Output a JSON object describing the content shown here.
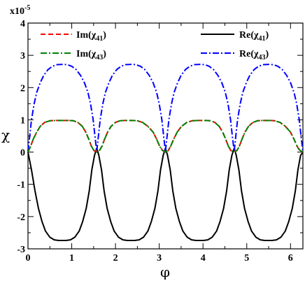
{
  "chart_data": {
    "type": "line",
    "multiplier": {
      "base": "x10",
      "exponent": "-5"
    },
    "xlabel": "φ",
    "ylabel": "χ",
    "xlim": [
      0,
      6.283
    ],
    "ylim": [
      -3,
      4
    ],
    "x_ticks": [
      "0",
      "1",
      "2",
      "3",
      "4",
      "5",
      "6"
    ],
    "y_ticks": [
      "-3",
      "-2",
      "-1",
      "0",
      "1",
      "2",
      "3",
      "4"
    ],
    "grid": false,
    "legend_left": [
      {
        "series": "Im_chi41",
        "label_main": "Im(χ",
        "label_sub": "41",
        "label_end": ")"
      },
      {
        "series": "Im_chi43",
        "label_main": "Im(χ",
        "label_sub": "43",
        "label_end": ")"
      }
    ],
    "legend_right": [
      {
        "series": "Re_chi41",
        "label_main": "Re(χ",
        "label_sub": "41",
        "label_end": ")"
      },
      {
        "series": "Re_chi43",
        "label_main": "Re(χ",
        "label_sub": "43",
        "label_end": ")"
      }
    ],
    "series": [
      {
        "id": "Re_chi41",
        "color": "#000000",
        "dash": "",
        "x": [
          0,
          0.08,
          0.16,
          0.24,
          0.32,
          0.4,
          0.5,
          0.6,
          0.7,
          0.785,
          0.87,
          0.97,
          1.07,
          1.17,
          1.25,
          1.33,
          1.4,
          1.46,
          1.52,
          1.5708,
          1.62,
          1.68,
          1.74,
          1.81,
          1.89,
          1.97,
          2.07,
          2.17,
          2.27,
          2.356,
          2.44,
          2.54,
          2.64,
          2.74,
          2.82,
          2.9,
          2.97,
          3.03,
          3.09,
          3.1416,
          3.19,
          3.25,
          3.31,
          3.38,
          3.46,
          3.54,
          3.64,
          3.74,
          3.84,
          3.927,
          4.01,
          4.11,
          4.21,
          4.31,
          4.39,
          4.47,
          4.54,
          4.6,
          4.66,
          4.7124,
          4.76,
          4.82,
          4.88,
          4.95,
          5.03,
          5.11,
          5.21,
          5.31,
          5.41,
          5.498,
          5.58,
          5.68,
          5.78,
          5.88,
          5.96,
          6.04,
          6.11,
          6.17,
          6.23,
          6.283
        ],
        "values": [
          0,
          -0.55,
          -1.2,
          -1.75,
          -2.15,
          -2.45,
          -2.64,
          -2.72,
          -2.74,
          -2.74,
          -2.74,
          -2.72,
          -2.64,
          -2.45,
          -2.15,
          -1.75,
          -1.2,
          -0.55,
          -0.1,
          0.12,
          -0.1,
          -0.55,
          -1.2,
          -1.75,
          -2.15,
          -2.45,
          -2.64,
          -2.72,
          -2.74,
          -2.74,
          -2.74,
          -2.72,
          -2.64,
          -2.45,
          -2.15,
          -1.75,
          -1.2,
          -0.55,
          -0.1,
          0.12,
          -0.1,
          -0.55,
          -1.2,
          -1.75,
          -2.15,
          -2.45,
          -2.64,
          -2.72,
          -2.74,
          -2.74,
          -2.74,
          -2.72,
          -2.64,
          -2.45,
          -2.15,
          -1.75,
          -1.2,
          -0.55,
          -0.1,
          0.12,
          -0.1,
          -0.55,
          -1.2,
          -1.75,
          -2.15,
          -2.45,
          -2.64,
          -2.72,
          -2.74,
          -2.74,
          -2.74,
          -2.72,
          -2.64,
          -2.45,
          -2.15,
          -1.75,
          -1.2,
          -0.55,
          -0.1,
          0
        ]
      },
      {
        "id": "Re_chi43",
        "color": "#0000ff",
        "dash": "9,3,2,3",
        "x": [
          0,
          0.04,
          0.08,
          0.14,
          0.2,
          0.28,
          0.36,
          0.46,
          0.56,
          0.66,
          0.785,
          0.9,
          1.0,
          1.1,
          1.2,
          1.29,
          1.37,
          1.43,
          1.49,
          1.53,
          1.5708,
          1.61,
          1.65,
          1.71,
          1.77,
          1.85,
          1.93,
          2.03,
          2.13,
          2.23,
          2.356,
          2.47,
          2.57,
          2.67,
          2.77,
          2.86,
          2.94,
          3.0,
          3.06,
          3.1,
          3.1416,
          3.18,
          3.22,
          3.28,
          3.34,
          3.42,
          3.5,
          3.6,
          3.7,
          3.8,
          3.927,
          4.04,
          4.14,
          4.24,
          4.34,
          4.43,
          4.51,
          4.57,
          4.63,
          4.67,
          4.7124,
          4.75,
          4.79,
          4.85,
          4.91,
          4.99,
          5.07,
          5.17,
          5.27,
          5.37,
          5.498,
          5.61,
          5.71,
          5.81,
          5.91,
          6.0,
          6.08,
          6.14,
          6.2,
          6.24,
          6.283
        ],
        "values": [
          0.02,
          0.5,
          1.0,
          1.5,
          1.85,
          2.15,
          2.38,
          2.56,
          2.66,
          2.71,
          2.72,
          2.71,
          2.66,
          2.56,
          2.38,
          2.15,
          1.85,
          1.5,
          1.0,
          0.5,
          0.02,
          0.5,
          1.0,
          1.5,
          1.85,
          2.15,
          2.38,
          2.56,
          2.66,
          2.71,
          2.72,
          2.71,
          2.66,
          2.56,
          2.38,
          2.15,
          1.85,
          1.5,
          1.0,
          0.5,
          0.02,
          0.5,
          1.0,
          1.5,
          1.85,
          2.15,
          2.38,
          2.56,
          2.66,
          2.71,
          2.72,
          2.71,
          2.66,
          2.56,
          2.38,
          2.15,
          1.85,
          1.5,
          1.0,
          0.5,
          0.02,
          0.5,
          1.0,
          1.5,
          1.85,
          2.15,
          2.38,
          2.56,
          2.66,
          2.71,
          2.72,
          2.71,
          2.66,
          2.56,
          2.38,
          2.15,
          1.85,
          1.5,
          1.0,
          0.5,
          0.02
        ]
      },
      {
        "id": "Im_chi41",
        "color": "#ff0000",
        "dash": "7,4",
        "x": [
          0,
          0.06,
          0.12,
          0.2,
          0.28,
          0.38,
          0.5,
          0.62,
          0.74,
          0.84,
          0.94,
          1.04,
          1.14,
          1.24,
          1.32,
          1.39,
          1.45,
          1.51,
          1.5708,
          1.63,
          1.69,
          1.75,
          1.82,
          1.9,
          2.0,
          2.1,
          2.2,
          2.3,
          2.4,
          2.5,
          2.62,
          2.74,
          2.86,
          2.94,
          3.01,
          3.08,
          3.1416,
          3.2,
          3.26,
          3.33,
          3.41,
          3.51,
          3.63,
          3.75,
          3.87,
          3.97,
          4.07,
          4.17,
          4.27,
          4.37,
          4.45,
          4.52,
          4.58,
          4.64,
          4.7124,
          4.77,
          4.83,
          4.89,
          4.96,
          5.04,
          5.14,
          5.24,
          5.34,
          5.44,
          5.54,
          5.64,
          5.76,
          5.88,
          6.0,
          6.08,
          6.15,
          6.21,
          6.283
        ],
        "values": [
          0,
          0.18,
          0.4,
          0.62,
          0.8,
          0.92,
          0.97,
          0.98,
          0.98,
          0.98,
          0.98,
          0.97,
          0.92,
          0.8,
          0.62,
          0.4,
          0.18,
          0.04,
          0.03,
          0.04,
          0.18,
          0.4,
          0.62,
          0.8,
          0.92,
          0.97,
          0.98,
          0.98,
          0.98,
          0.97,
          0.92,
          0.8,
          0.62,
          0.4,
          0.18,
          0.04,
          0.03,
          0.04,
          0.18,
          0.4,
          0.62,
          0.8,
          0.92,
          0.97,
          0.98,
          0.98,
          0.98,
          0.97,
          0.92,
          0.8,
          0.62,
          0.4,
          0.18,
          0.04,
          0.03,
          0.04,
          0.18,
          0.4,
          0.62,
          0.8,
          0.92,
          0.97,
          0.98,
          0.98,
          0.98,
          0.97,
          0.92,
          0.8,
          0.62,
          0.4,
          0.18,
          0.04,
          0
        ]
      },
      {
        "id": "Im_chi43",
        "color": "#008000",
        "dash": "9,3,2,3",
        "x": [
          0,
          0.06,
          0.12,
          0.2,
          0.28,
          0.38,
          0.5,
          0.62,
          0.74,
          0.84,
          0.94,
          1.04,
          1.14,
          1.24,
          1.32,
          1.39,
          1.45,
          1.5,
          1.5708,
          1.64,
          1.69,
          1.75,
          1.82,
          1.9,
          2.0,
          2.1,
          2.2,
          2.3,
          2.4,
          2.5,
          2.62,
          2.74,
          2.86,
          2.94,
          3.01,
          3.07,
          3.1416,
          3.21,
          3.26,
          3.33,
          3.41,
          3.51,
          3.63,
          3.75,
          3.87,
          3.97,
          4.07,
          4.17,
          4.27,
          4.37,
          4.45,
          4.52,
          4.58,
          4.64,
          4.7124,
          4.78,
          4.83,
          4.89,
          4.96,
          5.04,
          5.14,
          5.24,
          5.34,
          5.44,
          5.54,
          5.64,
          5.76,
          5.88,
          6.0,
          6.08,
          6.15,
          6.21,
          6.283
        ],
        "values": [
          0,
          0.18,
          0.4,
          0.62,
          0.8,
          0.92,
          0.97,
          0.98,
          0.98,
          0.98,
          0.98,
          0.97,
          0.92,
          0.8,
          0.62,
          0.4,
          0.18,
          0.06,
          0,
          0.06,
          0.18,
          0.4,
          0.62,
          0.8,
          0.92,
          0.97,
          0.98,
          0.98,
          0.98,
          0.97,
          0.92,
          0.8,
          0.62,
          0.4,
          0.18,
          0.06,
          0,
          0.06,
          0.18,
          0.4,
          0.62,
          0.8,
          0.92,
          0.97,
          0.98,
          0.98,
          0.98,
          0.97,
          0.92,
          0.8,
          0.62,
          0.4,
          0.18,
          0.06,
          0,
          0.06,
          0.18,
          0.4,
          0.62,
          0.8,
          0.92,
          0.97,
          0.98,
          0.98,
          0.98,
          0.97,
          0.92,
          0.8,
          0.62,
          0.4,
          0.18,
          0.06,
          0
        ]
      }
    ]
  }
}
